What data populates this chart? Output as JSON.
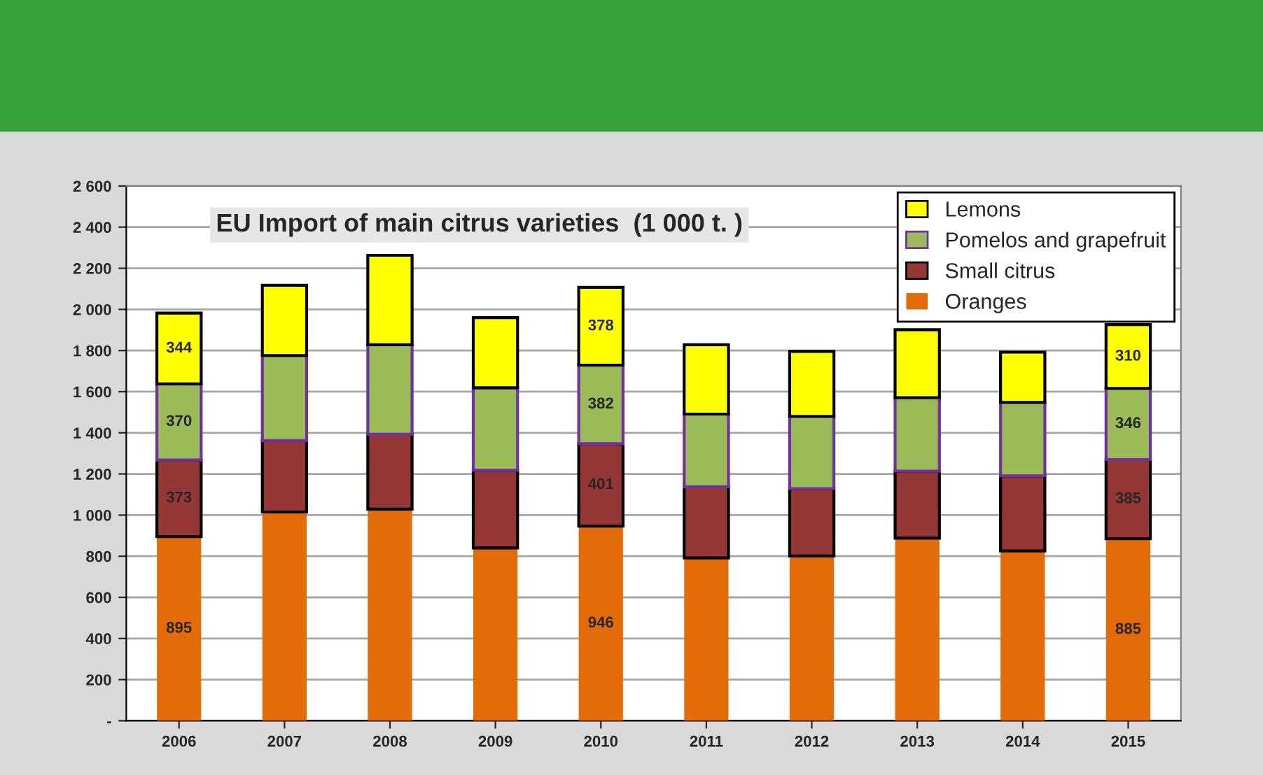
{
  "chart_data": {
    "type": "bar",
    "title": "EU Import of main citrus varieties  (1 000 t. )",
    "stacked": true,
    "categories": [
      "2006",
      "2007",
      "2008",
      "2009",
      "2010",
      "2011",
      "2012",
      "2013",
      "2014",
      "2015"
    ],
    "series": [
      {
        "name": "Oranges",
        "color": "#e36c09",
        "values": [
          895,
          1015,
          1029,
          840,
          946,
          792,
          801,
          888,
          826,
          885
        ],
        "value_labels": [
          "895",
          null,
          null,
          null,
          "946",
          null,
          null,
          null,
          null,
          "885"
        ]
      },
      {
        "name": "Small citrus",
        "color": "#953735",
        "values": [
          373,
          347,
          364,
          378,
          401,
          346,
          328,
          326,
          365,
          385
        ],
        "value_labels": [
          "373",
          null,
          null,
          null,
          "401",
          null,
          null,
          null,
          null,
          "385"
        ]
      },
      {
        "name": "Pomelos and grapefruit",
        "color": "#9bbb59",
        "values": [
          370,
          414,
          435,
          401,
          382,
          353,
          351,
          357,
          357,
          346
        ],
        "value_labels": [
          "370",
          null,
          null,
          null,
          "382",
          null,
          null,
          null,
          null,
          "346"
        ]
      },
      {
        "name": "Lemons",
        "color": "#ffff00",
        "values": [
          344,
          341,
          435,
          341,
          378,
          337,
          316,
          330,
          244,
          310
        ],
        "value_labels": [
          "344",
          null,
          null,
          null,
          "378",
          null,
          null,
          null,
          null,
          "310"
        ]
      }
    ],
    "ylim": [
      0,
      2600
    ],
    "yticks": [
      {
        "value": 0,
        "label": "-"
      },
      {
        "value": 200,
        "label": "200"
      },
      {
        "value": 400,
        "label": "400"
      },
      {
        "value": 600,
        "label": "600"
      },
      {
        "value": 800,
        "label": "800"
      },
      {
        "value": 1000,
        "label": "1 000"
      },
      {
        "value": 1200,
        "label": "1 200"
      },
      {
        "value": 1400,
        "label": "1 400"
      },
      {
        "value": 1600,
        "label": "1 600"
      },
      {
        "value": 1800,
        "label": "1 800"
      },
      {
        "value": 2000,
        "label": "2 000"
      },
      {
        "value": 2200,
        "label": "2 200"
      },
      {
        "value": 2400,
        "label": "2 400"
      },
      {
        "value": 2600,
        "label": "2 600"
      }
    ],
    "grid": "y",
    "legend": "top right"
  }
}
